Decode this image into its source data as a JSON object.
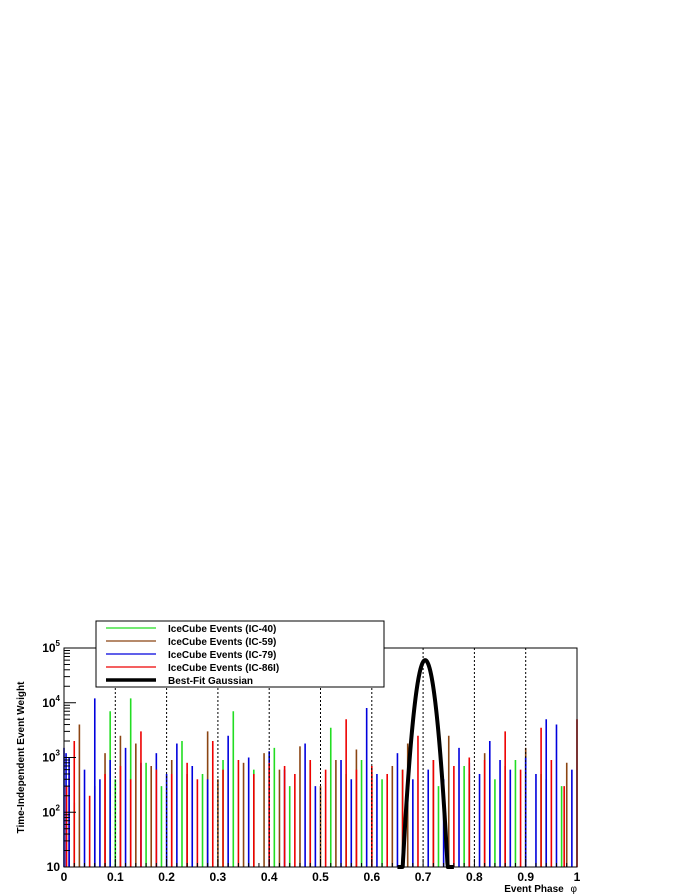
{
  "chart_data": {
    "type": "bar",
    "xlabel": "Event Phase",
    "xlabel_symbol": "φ",
    "ylabel": "Time-Independent Event Weight",
    "xlim": [
      0,
      1
    ],
    "ylim": [
      10,
      100000
    ],
    "ylog": true,
    "x_ticks": [
      "0",
      "0.1",
      "0.2",
      "0.3",
      "0.4",
      "0.5",
      "0.6",
      "0.7",
      "0.8",
      "0.9",
      "1"
    ],
    "y_ticks": [
      {
        "value": 10,
        "base": "10",
        "exp": ""
      },
      {
        "value": 100,
        "base": "10",
        "exp": "2"
      },
      {
        "value": 1000,
        "base": "10",
        "exp": "3"
      },
      {
        "value": 10000,
        "base": "10",
        "exp": "4"
      },
      {
        "value": 100000,
        "base": "10",
        "exp": "5"
      }
    ],
    "dotted_gridlines_x": [
      0.1,
      0.2,
      0.3,
      0.4,
      0.5,
      0.6,
      0.7,
      0.8,
      0.9,
      1.0
    ],
    "legend_position": "top-left",
    "series": [
      {
        "name": "IceCube Events (IC-40)",
        "color": "#22dd22",
        "style": "spikes",
        "points": [
          [
            0.02,
            150
          ],
          [
            0.09,
            7000
          ],
          [
            0.1,
            400
          ],
          [
            0.13,
            12000
          ],
          [
            0.16,
            800
          ],
          [
            0.19,
            300
          ],
          [
            0.23,
            2000
          ],
          [
            0.27,
            500
          ],
          [
            0.31,
            900
          ],
          [
            0.33,
            7000
          ],
          [
            0.37,
            600
          ],
          [
            0.41,
            1500
          ],
          [
            0.44,
            300
          ],
          [
            0.48,
            800
          ],
          [
            0.52,
            3500
          ],
          [
            0.55,
            500
          ],
          [
            0.58,
            900
          ],
          [
            0.62,
            400
          ],
          [
            0.66,
            600
          ],
          [
            0.73,
            300
          ],
          [
            0.78,
            700
          ],
          [
            0.84,
            400
          ],
          [
            0.88,
            900
          ],
          [
            0.93,
            500
          ],
          [
            0.97,
            300
          ]
        ]
      },
      {
        "name": "IceCube Events (IC-59)",
        "color": "#8b4513",
        "style": "spikes",
        "points": [
          [
            0.01,
            600
          ],
          [
            0.03,
            4000
          ],
          [
            0.06,
            300
          ],
          [
            0.08,
            1200
          ],
          [
            0.11,
            2500
          ],
          [
            0.14,
            1800
          ],
          [
            0.17,
            700
          ],
          [
            0.21,
            900
          ],
          [
            0.24,
            500
          ],
          [
            0.28,
            3000
          ],
          [
            0.3,
            400
          ],
          [
            0.35,
            800
          ],
          [
            0.39,
            1200
          ],
          [
            0.42,
            600
          ],
          [
            0.46,
            1600
          ],
          [
            0.5,
            300
          ],
          [
            0.53,
            900
          ],
          [
            0.57,
            1400
          ],
          [
            0.6,
            500
          ],
          [
            0.64,
            700
          ],
          [
            0.67,
            1800
          ],
          [
            0.72,
            900
          ],
          [
            0.75,
            2500
          ],
          [
            0.79,
            500
          ],
          [
            0.82,
            1200
          ],
          [
            0.86,
            700
          ],
          [
            0.9,
            1500
          ],
          [
            0.94,
            400
          ],
          [
            0.98,
            800
          ]
        ]
      },
      {
        "name": "IceCube Events (IC-79)",
        "color": "#0000dd",
        "style": "spikes",
        "points": [
          [
            0.0,
            1500
          ],
          [
            0.004,
            1200
          ],
          [
            0.01,
            1000
          ],
          [
            0.04,
            600
          ],
          [
            0.06,
            12000
          ],
          [
            0.07,
            400
          ],
          [
            0.09,
            900
          ],
          [
            0.12,
            1500
          ],
          [
            0.15,
            800
          ],
          [
            0.18,
            1200
          ],
          [
            0.2,
            500
          ],
          [
            0.22,
            1800
          ],
          [
            0.25,
            700
          ],
          [
            0.28,
            400
          ],
          [
            0.32,
            2500
          ],
          [
            0.36,
            1000
          ],
          [
            0.4,
            1300
          ],
          [
            0.43,
            600
          ],
          [
            0.47,
            1800
          ],
          [
            0.49,
            300
          ],
          [
            0.54,
            900
          ],
          [
            0.56,
            400
          ],
          [
            0.59,
            8000
          ],
          [
            0.61,
            500
          ],
          [
            0.65,
            1200
          ],
          [
            0.68,
            400
          ],
          [
            0.71,
            600
          ],
          [
            0.74,
            400
          ],
          [
            0.77,
            1500
          ],
          [
            0.79,
            800
          ],
          [
            0.81,
            500
          ],
          [
            0.83,
            2000
          ],
          [
            0.85,
            900
          ],
          [
            0.87,
            600
          ],
          [
            0.9,
            1000
          ],
          [
            0.92,
            500
          ],
          [
            0.94,
            5000
          ],
          [
            0.96,
            4000
          ],
          [
            0.99,
            600
          ]
        ]
      },
      {
        "name": "IceCube Events (IC-86I)",
        "color": "#ee0000",
        "style": "spikes",
        "points": [
          [
            0.005,
            300
          ],
          [
            0.02,
            2000
          ],
          [
            0.05,
            200
          ],
          [
            0.08,
            500
          ],
          [
            0.11,
            700
          ],
          [
            0.13,
            400
          ],
          [
            0.15,
            3000
          ],
          [
            0.18,
            600
          ],
          [
            0.21,
            500
          ],
          [
            0.24,
            800
          ],
          [
            0.26,
            400
          ],
          [
            0.29,
            2000
          ],
          [
            0.31,
            600
          ],
          [
            0.34,
            900
          ],
          [
            0.37,
            500
          ],
          [
            0.4,
            800
          ],
          [
            0.43,
            700
          ],
          [
            0.45,
            500
          ],
          [
            0.48,
            900
          ],
          [
            0.51,
            600
          ],
          [
            0.55,
            5000
          ],
          [
            0.57,
            600
          ],
          [
            0.6,
            700
          ],
          [
            0.63,
            500
          ],
          [
            0.66,
            600
          ],
          [
            0.69,
            2500
          ],
          [
            0.72,
            900
          ],
          [
            0.76,
            700
          ],
          [
            0.79,
            1000
          ],
          [
            0.82,
            900
          ],
          [
            0.86,
            3000
          ],
          [
            0.89,
            600
          ],
          [
            0.93,
            3500
          ],
          [
            0.95,
            900
          ],
          [
            0.975,
            300
          ],
          [
            1.0,
            5000
          ]
        ]
      },
      {
        "name": "Best-Fit Gaussian",
        "color": "#000000",
        "style": "gaussian",
        "amplitude": 60000,
        "mean": 0.704,
        "sigma": 0.0105,
        "range": [
          0.65,
          0.76
        ]
      }
    ]
  }
}
